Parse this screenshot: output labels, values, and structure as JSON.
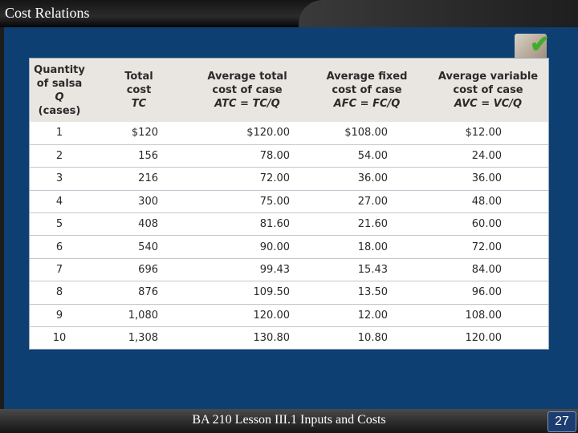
{
  "slide": {
    "title": "Cost Relations",
    "footer": "BA 210  Lesson III.1 Inputs and Costs",
    "page_number": "27"
  },
  "table": {
    "headers": [
      {
        "lines": [
          "Quantity",
          "of salsa"
        ],
        "italic": "Q",
        "extra": "(cases)"
      },
      {
        "lines": [
          "Total",
          "cost"
        ],
        "italic": "TC",
        "extra": ""
      },
      {
        "lines": [
          "Average total",
          "cost of case"
        ],
        "italic": "ATC = TC/Q",
        "extra": ""
      },
      {
        "lines": [
          "Average fixed",
          "cost of case"
        ],
        "italic": "AFC = FC/Q",
        "extra": ""
      },
      {
        "lines": [
          "Average variable",
          "cost of case"
        ],
        "italic": "AVC = VC/Q",
        "extra": ""
      }
    ],
    "rows": [
      [
        "1",
        "$120",
        "$120.00",
        "$108.00",
        "$12.00"
      ],
      [
        "2",
        "156",
        "78.00",
        "54.00",
        "24.00"
      ],
      [
        "3",
        "216",
        "72.00",
        "36.00",
        "36.00"
      ],
      [
        "4",
        "300",
        "75.00",
        "27.00",
        "48.00"
      ],
      [
        "5",
        "408",
        "81.60",
        "21.60",
        "60.00"
      ],
      [
        "6",
        "540",
        "90.00",
        "18.00",
        "72.00"
      ],
      [
        "7",
        "696",
        "99.43",
        "15.43",
        "84.00"
      ],
      [
        "8",
        "876",
        "109.50",
        "13.50",
        "96.00"
      ],
      [
        "9",
        "1,080",
        "120.00",
        "12.00",
        "108.00"
      ],
      [
        "10",
        "1,308",
        "130.80",
        "10.80",
        "120.00"
      ]
    ]
  }
}
